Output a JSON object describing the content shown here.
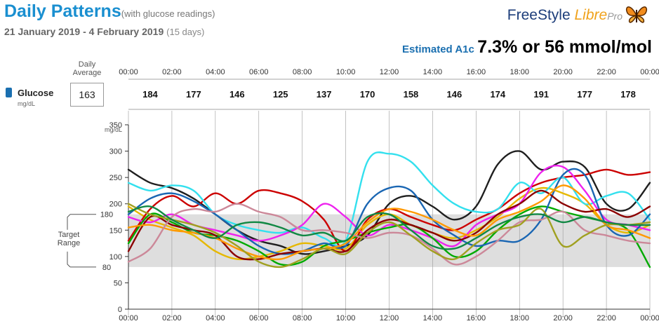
{
  "header": {
    "title": "Daily Patterns",
    "subtitle": "(with glucose readings)",
    "date_range": "21 January 2019 - 4 February 2019",
    "days": "(15 days)",
    "logo_freestyle": "FreeStyle",
    "logo_libre": "Libre",
    "logo_pro": "Pro",
    "a1c_label": "Estimated A1c",
    "a1c_value": "7.3% or 56 mmol/mol"
  },
  "daily_average": {
    "label_line1": "Daily",
    "label_line2": "Average",
    "value": "163"
  },
  "glucose_label": "Glucose",
  "glucose_unit": "mg/dL",
  "target_range_label_1": "Target",
  "target_range_label_2": "Range",
  "colors": {
    "title": "#1a8fd0",
    "target_band": "#dedede",
    "grid": "#999999"
  },
  "chart_data": {
    "type": "line",
    "time_labels": [
      "00:00",
      "02:00",
      "04:00",
      "06:00",
      "08:00",
      "10:00",
      "12:00",
      "14:00",
      "16:00",
      "18:00",
      "20:00",
      "22:00",
      "00:00"
    ],
    "period_averages": [
      184,
      177,
      146,
      125,
      137,
      170,
      158,
      146,
      174,
      191,
      177,
      178
    ],
    "yticks": [
      0,
      50,
      100,
      150,
      200,
      250,
      300,
      350
    ],
    "ylabel": "mg/dL",
    "ylim": [
      0,
      350
    ],
    "target_range": [
      80,
      180
    ],
    "target_low_label": "80",
    "target_high_label": "180",
    "x_unit": "hours",
    "series": [
      {
        "color": "#1f1f1f",
        "x": [
          0,
          1,
          2,
          3,
          4,
          5,
          6,
          7,
          8,
          9,
          10,
          11,
          12,
          13,
          14,
          15,
          16,
          17,
          18,
          19,
          20,
          21,
          22,
          23,
          24
        ],
        "values": [
          265,
          240,
          230,
          210,
          180,
          150,
          130,
          120,
          105,
          110,
          120,
          140,
          200,
          215,
          195,
          170,
          195,
          275,
          300,
          265,
          280,
          270,
          200,
          190,
          240
        ]
      },
      {
        "color": "#e6b800",
        "x": [
          0,
          1,
          2,
          3,
          4,
          5,
          6,
          7,
          8,
          9,
          10,
          11,
          12,
          13,
          14,
          15,
          16,
          17,
          18,
          19,
          20,
          21,
          22,
          23,
          24
        ],
        "values": [
          195,
          170,
          155,
          140,
          110,
          95,
          100,
          110,
          125,
          120,
          115,
          160,
          180,
          160,
          145,
          135,
          150,
          175,
          210,
          230,
          220,
          200,
          160,
          145,
          160
        ]
      },
      {
        "color": "#cc0000",
        "x": [
          0,
          1,
          2,
          3,
          4,
          5,
          6,
          7,
          8,
          9,
          10,
          11,
          12,
          13,
          14,
          15,
          16,
          17,
          18,
          19,
          20,
          21,
          22,
          23,
          24
        ],
        "values": [
          130,
          190,
          215,
          195,
          220,
          200,
          225,
          220,
          205,
          170,
          110,
          170,
          190,
          175,
          160,
          150,
          170,
          190,
          220,
          240,
          250,
          255,
          265,
          255,
          260
        ]
      },
      {
        "color": "#33e0ee",
        "x": [
          0,
          1,
          2,
          3,
          4,
          5,
          6,
          7,
          8,
          9,
          10,
          11,
          12,
          13,
          14,
          15,
          16,
          17,
          18,
          19,
          20,
          21,
          22,
          23,
          24
        ],
        "values": [
          240,
          225,
          235,
          225,
          180,
          160,
          150,
          145,
          155,
          135,
          130,
          280,
          295,
          280,
          235,
          200,
          185,
          190,
          240,
          220,
          250,
          200,
          215,
          220,
          170
        ]
      },
      {
        "color": "#ee22ee",
        "x": [
          0,
          1,
          2,
          3,
          4,
          5,
          6,
          7,
          8,
          9,
          10,
          11,
          12,
          13,
          14,
          15,
          16,
          17,
          18,
          19,
          20,
          21,
          22,
          23,
          24
        ],
        "values": [
          175,
          165,
          180,
          160,
          150,
          140,
          130,
          140,
          160,
          200,
          175,
          140,
          160,
          150,
          135,
          120,
          160,
          180,
          200,
          260,
          270,
          225,
          170,
          160,
          150
        ]
      },
      {
        "color": "#00aa00",
        "x": [
          0,
          1,
          2,
          3,
          4,
          5,
          6,
          7,
          8,
          9,
          10,
          11,
          12,
          13,
          14,
          15,
          16,
          17,
          18,
          19,
          20,
          21,
          22,
          23,
          24
        ],
        "values": [
          125,
          180,
          165,
          145,
          140,
          130,
          110,
          85,
          90,
          120,
          130,
          145,
          155,
          160,
          135,
          100,
          110,
          150,
          180,
          195,
          185,
          175,
          165,
          150,
          80
        ]
      },
      {
        "color": "#1a66b3",
        "x": [
          0,
          1,
          2,
          3,
          4,
          5,
          6,
          7,
          8,
          9,
          10,
          11,
          12,
          13,
          14,
          15,
          16,
          17,
          18,
          19,
          20,
          21,
          22,
          23,
          24
        ],
        "values": [
          180,
          210,
          220,
          205,
          180,
          150,
          120,
          105,
          110,
          125,
          120,
          200,
          230,
          225,
          170,
          140,
          120,
          130,
          130,
          170,
          255,
          255,
          160,
          140,
          180
        ]
      },
      {
        "color": "#8b0000",
        "x": [
          0,
          1,
          2,
          3,
          4,
          5,
          6,
          7,
          8,
          9,
          10,
          11,
          12,
          13,
          14,
          15,
          16,
          17,
          18,
          19,
          20,
          21,
          22,
          23,
          24
        ],
        "values": [
          110,
          175,
          160,
          150,
          140,
          100,
          95,
          105,
          110,
          115,
          110,
          150,
          170,
          160,
          145,
          130,
          145,
          180,
          200,
          225,
          200,
          185,
          190,
          175,
          195
        ]
      },
      {
        "color": "#ff9900",
        "x": [
          0,
          1,
          2,
          3,
          4,
          5,
          6,
          7,
          8,
          9,
          10,
          11,
          12,
          13,
          14,
          15,
          16,
          17,
          18,
          19,
          20,
          21,
          22,
          23,
          24
        ],
        "values": [
          155,
          160,
          150,
          145,
          135,
          115,
          100,
          95,
          110,
          115,
          125,
          165,
          190,
          185,
          170,
          150,
          140,
          170,
          185,
          205,
          235,
          210,
          160,
          150,
          135
        ]
      },
      {
        "color": "#cc8899",
        "x": [
          0,
          1,
          2,
          3,
          4,
          5,
          6,
          7,
          8,
          9,
          10,
          11,
          12,
          13,
          14,
          15,
          16,
          17,
          18,
          19,
          20,
          21,
          22,
          23,
          24
        ],
        "values": [
          90,
          115,
          175,
          190,
          185,
          200,
          185,
          175,
          150,
          150,
          145,
          135,
          145,
          140,
          115,
          85,
          100,
          130,
          165,
          170,
          185,
          150,
          140,
          130,
          125
        ]
      },
      {
        "color": "#a0a020",
        "x": [
          0,
          1,
          2,
          3,
          4,
          5,
          6,
          7,
          8,
          9,
          10,
          11,
          12,
          13,
          14,
          15,
          16,
          17,
          18,
          19,
          20,
          21,
          22,
          23,
          24
        ],
        "values": [
          200,
          180,
          170,
          160,
          145,
          120,
          90,
          80,
          95,
          115,
          105,
          145,
          165,
          140,
          110,
          95,
          125,
          150,
          160,
          190,
          120,
          140,
          160,
          160,
          165
        ]
      },
      {
        "color": "#118844",
        "x": [
          0,
          1,
          2,
          3,
          4,
          5,
          6,
          7,
          8,
          9,
          10,
          11,
          12,
          13,
          14,
          15,
          16,
          17,
          18,
          19,
          20,
          21,
          22,
          23,
          24
        ],
        "values": [
          185,
          195,
          170,
          150,
          135,
          160,
          165,
          155,
          140,
          145,
          130,
          175,
          180,
          150,
          120,
          115,
          135,
          160,
          175,
          180,
          165,
          175,
          165,
          160,
          160
        ]
      }
    ]
  }
}
